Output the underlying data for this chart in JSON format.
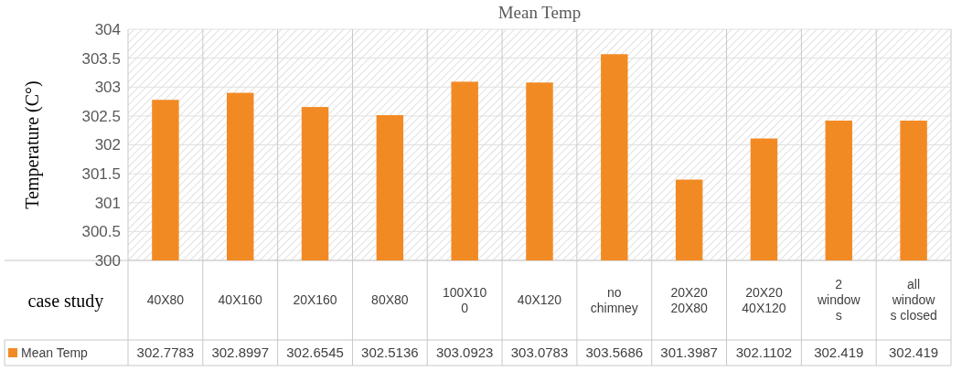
{
  "chart_data": {
    "type": "bar",
    "title": "Mean Temp",
    "xlabel": "case study",
    "ylabel": "Temperature (C°)",
    "categories": [
      "40X80",
      "40X160",
      "20X160",
      "80X80",
      "100X100",
      "40X120",
      "no chimney",
      "20X20 20X80",
      "20X20 40X120",
      "2 windows",
      "all windows closed"
    ],
    "series": [
      {
        "name": "Mean Temp",
        "color": "#f28a24",
        "values": [
          302.7783,
          302.8997,
          302.6545,
          302.5136,
          303.0923,
          303.0783,
          303.5686,
          301.3987,
          302.1102,
          302.419,
          302.419
        ]
      }
    ],
    "ylim": [
      300,
      304
    ],
    "yticks": [
      300,
      300.5,
      301,
      301.5,
      302,
      302.5,
      303,
      303.5,
      304
    ],
    "grid": "y",
    "legend": "bottom",
    "data_labels": true
  }
}
